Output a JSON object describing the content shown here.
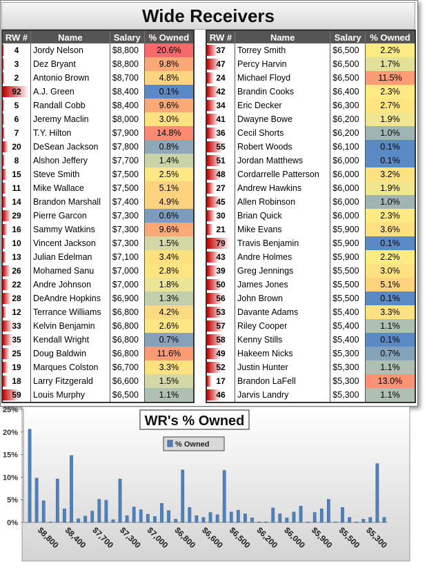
{
  "title": "Wide Receivers",
  "headers": [
    "RW #",
    "Name",
    "Salary",
    "% Owned"
  ],
  "left_rows": [
    {
      "rank": "4",
      "name": "Jordy Nelson",
      "salary": "$8,800",
      "owned": "20.6%",
      "pct": 20.6,
      "color": "#f8696b"
    },
    {
      "rank": "3",
      "name": "Dez Bryant",
      "salary": "$8,800",
      "owned": "9.8%",
      "pct": 9.8,
      "color": "#fba876"
    },
    {
      "rank": "2",
      "name": "Antonio Brown",
      "salary": "$8,700",
      "owned": "4.8%",
      "pct": 4.8,
      "color": "#fed480"
    },
    {
      "rank": "92",
      "name": "A.J. Green",
      "salary": "$8,400",
      "owned": "0.1%",
      "pct": 0.1,
      "color": "#5a8ac6"
    },
    {
      "rank": "5",
      "name": "Randall Cobb",
      "salary": "$8,400",
      "owned": "9.6%",
      "pct": 9.6,
      "color": "#fba976"
    },
    {
      "rank": "6",
      "name": "Jeremy Maclin",
      "salary": "$8,000",
      "owned": "3.0%",
      "pct": 3.0,
      "color": "#fee282"
    },
    {
      "rank": "7",
      "name": "T.Y. Hilton",
      "salary": "$7,900",
      "owned": "14.8%",
      "pct": 14.8,
      "color": "#fa8a72"
    },
    {
      "rank": "20",
      "name": "DeSean Jackson",
      "salary": "$7,800",
      "owned": "0.8%",
      "pct": 0.8,
      "color": "#8ea8b9"
    },
    {
      "rank": "8",
      "name": "Alshon Jeffery",
      "salary": "$7,700",
      "owned": "1.4%",
      "pct": 1.4,
      "color": "#c9d3a8"
    },
    {
      "rank": "15",
      "name": "Steve Smith",
      "salary": "$7,500",
      "owned": "2.5%",
      "pct": 2.5,
      "color": "#fde883"
    },
    {
      "rank": "11",
      "name": "Mike Wallace",
      "salary": "$7,500",
      "owned": "5.1%",
      "pct": 5.1,
      "color": "#fed27f"
    },
    {
      "rank": "14",
      "name": "Brandon Marshall",
      "salary": "$7,400",
      "owned": "4.9%",
      "pct": 4.9,
      "color": "#fed380"
    },
    {
      "rank": "29",
      "name": "Pierre Garcon",
      "salary": "$7,300",
      "owned": "0.6%",
      "pct": 0.6,
      "color": "#7c9cbd"
    },
    {
      "rank": "16",
      "name": "Sammy Watkins",
      "salary": "$7,300",
      "owned": "9.6%",
      "pct": 9.6,
      "color": "#fba976"
    },
    {
      "rank": "10",
      "name": "Vincent Jackson",
      "salary": "$7,300",
      "owned": "1.5%",
      "pct": 1.5,
      "color": "#d3d9a4"
    },
    {
      "rank": "13",
      "name": "Julian Edelman",
      "salary": "$7,100",
      "owned": "3.4%",
      "pct": 3.4,
      "color": "#fee081"
    },
    {
      "rank": "26",
      "name": "Mohamed Sanu",
      "salary": "$7,000",
      "owned": "2.8%",
      "pct": 2.8,
      "color": "#fee582"
    },
    {
      "rank": "22",
      "name": "Andre Johnson",
      "salary": "$7,000",
      "owned": "1.8%",
      "pct": 1.8,
      "color": "#ebe494"
    },
    {
      "rank": "28",
      "name": "DeAndre Hopkins",
      "salary": "$6,900",
      "owned": "1.3%",
      "pct": 1.3,
      "color": "#c2cfab"
    },
    {
      "rank": "12",
      "name": "Terrance Williams",
      "salary": "$6,800",
      "owned": "4.2%",
      "pct": 4.2,
      "color": "#feda80"
    },
    {
      "rank": "33",
      "name": "Kelvin Benjamin",
      "salary": "$6,800",
      "owned": "2.6%",
      "pct": 2.6,
      "color": "#fde683"
    },
    {
      "rank": "35",
      "name": "Kendall Wright",
      "salary": "$6,800",
      "owned": "0.7%",
      "pct": 0.7,
      "color": "#85a2bb"
    },
    {
      "rank": "25",
      "name": "Doug Baldwin",
      "salary": "$6,800",
      "owned": "11.6%",
      "pct": 11.6,
      "color": "#fb9b74"
    },
    {
      "rank": "19",
      "name": "Marques Colston",
      "salary": "$6,700",
      "owned": "3.3%",
      "pct": 3.3,
      "color": "#fee181"
    },
    {
      "rank": "18",
      "name": "Larry Fitzgerald",
      "salary": "$6,600",
      "owned": "1.5%",
      "pct": 1.5,
      "color": "#d3d9a4"
    },
    {
      "rank": "59",
      "name": "Louis Murphy",
      "salary": "$6,500",
      "owned": "1.1%",
      "pct": 1.1,
      "color": "#adc0b1"
    }
  ],
  "right_rows": [
    {
      "rank": "37",
      "name": "Torrey Smith",
      "salary": "$6,500",
      "owned": "2.2%",
      "pct": 2.2,
      "color": "#fbeb85"
    },
    {
      "rank": "47",
      "name": "Percy Harvin",
      "salary": "$6,500",
      "owned": "1.7%",
      "pct": 1.7,
      "color": "#e3e198"
    },
    {
      "rank": "24",
      "name": "Michael Floyd",
      "salary": "$6,500",
      "owned": "11.5%",
      "pct": 11.5,
      "color": "#fb9c74"
    },
    {
      "rank": "42",
      "name": "Brandin Cooks",
      "salary": "$6,400",
      "owned": "2.3%",
      "pct": 2.3,
      "color": "#fdea84"
    },
    {
      "rank": "34",
      "name": "Eric Decker",
      "salary": "$6,300",
      "owned": "2.7%",
      "pct": 2.7,
      "color": "#fee582"
    },
    {
      "rank": "41",
      "name": "Dwayne Bowe",
      "salary": "$6,200",
      "owned": "1.9%",
      "pct": 1.9,
      "color": "#f0e690"
    },
    {
      "rank": "36",
      "name": "Cecil Shorts",
      "salary": "$6,200",
      "owned": "1.0%",
      "pct": 1.0,
      "color": "#a0b4b4"
    },
    {
      "rank": "55",
      "name": "Robert Woods",
      "salary": "$6,100",
      "owned": "0.1%",
      "pct": 0.1,
      "color": "#5a8ac6"
    },
    {
      "rank": "51",
      "name": "Jordan Matthews",
      "salary": "$6,000",
      "owned": "0.1%",
      "pct": 0.1,
      "color": "#5a8ac6"
    },
    {
      "rank": "48",
      "name": "Cordarrelle Patterson",
      "salary": "$6,000",
      "owned": "3.2%",
      "pct": 3.2,
      "color": "#fee181"
    },
    {
      "rank": "27",
      "name": "Andrew Hawkins",
      "salary": "$6,000",
      "owned": "1.9%",
      "pct": 1.9,
      "color": "#f0e690"
    },
    {
      "rank": "45",
      "name": "Allen Robinson",
      "salary": "$6,000",
      "owned": "1.0%",
      "pct": 1.0,
      "color": "#a0b4b4"
    },
    {
      "rank": "30",
      "name": "Brian Quick",
      "salary": "$6,000",
      "owned": "2.3%",
      "pct": 2.3,
      "color": "#fdea84"
    },
    {
      "rank": "21",
      "name": "Mike Evans",
      "salary": "$5,900",
      "owned": "3.6%",
      "pct": 3.6,
      "color": "#fedf81"
    },
    {
      "rank": "79",
      "name": "Travis Benjamin",
      "salary": "$5,900",
      "owned": "0.1%",
      "pct": 0.1,
      "color": "#5a8ac6"
    },
    {
      "rank": "43",
      "name": "Andre Holmes",
      "salary": "$5,900",
      "owned": "2.2%",
      "pct": 2.2,
      "color": "#fbeb85"
    },
    {
      "rank": "39",
      "name": "Greg Jennings",
      "salary": "$5,500",
      "owned": "3.0%",
      "pct": 3.0,
      "color": "#fee282"
    },
    {
      "rank": "50",
      "name": "James Jones",
      "salary": "$5,500",
      "owned": "5.1%",
      "pct": 5.1,
      "color": "#fed27f"
    },
    {
      "rank": "56",
      "name": "John Brown",
      "salary": "$5,500",
      "owned": "0.1%",
      "pct": 0.1,
      "color": "#5a8ac6"
    },
    {
      "rank": "53",
      "name": "Davante Adams",
      "salary": "$5,400",
      "owned": "3.3%",
      "pct": 3.3,
      "color": "#fee181"
    },
    {
      "rank": "57",
      "name": "Riley Cooper",
      "salary": "$5,400",
      "owned": "1.1%",
      "pct": 1.1,
      "color": "#adc0b1"
    },
    {
      "rank": "58",
      "name": "Kenny Stills",
      "salary": "$5,400",
      "owned": "0.1%",
      "pct": 0.1,
      "color": "#5a8ac6"
    },
    {
      "rank": "49",
      "name": "Hakeem Nicks",
      "salary": "$5,300",
      "owned": "0.7%",
      "pct": 0.7,
      "color": "#85a2bb"
    },
    {
      "rank": "52",
      "name": "Justin Hunter",
      "salary": "$5,300",
      "owned": "1.1%",
      "pct": 1.1,
      "color": "#adc0b1"
    },
    {
      "rank": "17",
      "name": "Brandon LaFell",
      "salary": "$5,300",
      "owned": "13.0%",
      "pct": 13.0,
      "color": "#fb9373"
    },
    {
      "rank": "46",
      "name": "Jarvis Landry",
      "salary": "$5,300",
      "owned": "1.1%",
      "pct": 1.1,
      "color": "#adc0b1"
    }
  ],
  "chart_data": {
    "type": "bar",
    "title": "WR's % Owned",
    "legend": "% Owned",
    "legend_position": "top-center",
    "bar_color": "#4f81bd",
    "ylim": [
      0,
      25
    ],
    "yticks": [
      "0%",
      "5%",
      "10%",
      "15%",
      "20%",
      "25%"
    ],
    "xtick_labels": [
      "$8,800",
      "$8,400",
      "$7,700",
      "$7,300",
      "$7,000",
      "$6,800",
      "$6,600",
      "$6,500",
      "$6,200",
      "$6,000",
      "$5,900",
      "$5,500",
      "$5,300"
    ],
    "values": [
      20.6,
      9.8,
      4.8,
      0.1,
      9.6,
      3.0,
      14.8,
      0.8,
      1.4,
      2.5,
      5.1,
      4.9,
      0.6,
      9.6,
      1.5,
      3.4,
      2.8,
      1.8,
      1.3,
      4.2,
      2.6,
      0.7,
      11.6,
      3.3,
      1.5,
      1.1,
      2.2,
      1.7,
      11.5,
      2.3,
      2.7,
      1.9,
      1.0,
      0.1,
      0.1,
      3.2,
      1.9,
      1.0,
      2.3,
      3.6,
      0.1,
      2.2,
      3.0,
      5.1,
      0.1,
      3.3,
      1.1,
      0.1,
      0.7,
      1.1,
      13.0,
      1.1
    ]
  }
}
